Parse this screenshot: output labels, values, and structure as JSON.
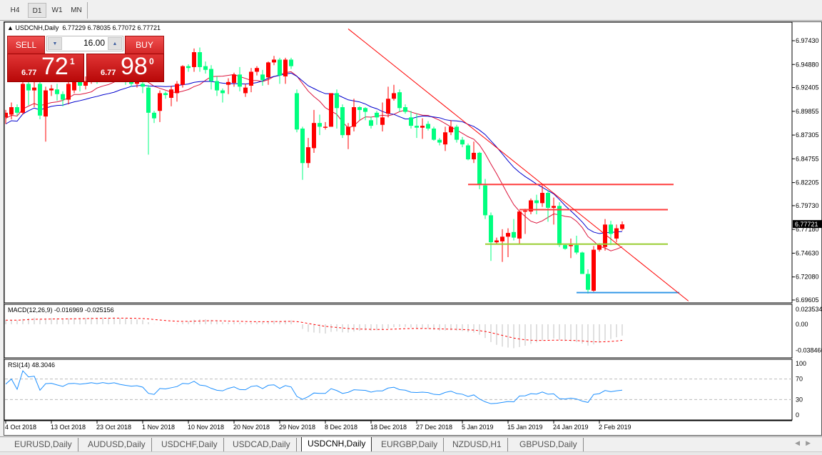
{
  "toolbar": {
    "timeframes": [
      {
        "label": "H4"
      },
      {
        "label": "D1",
        "active": true
      },
      {
        "label": "W1"
      },
      {
        "label": "MN"
      }
    ]
  },
  "chart": {
    "symbol_line": "USDCNH,Daily  6.77229 6.78035 6.77072 6.77721",
    "current_price": "6.77721",
    "colors": {
      "bull": "#ff0000",
      "bear": "#00ff7f",
      "ma_fast": "#dc143c",
      "ma_slow": "#0000cd",
      "trend": "#ff0000",
      "res1": "#ff3c3c",
      "res2": "#ff3c3c",
      "support": "#9acd32",
      "low": "#3399e6"
    }
  },
  "trade_panel": {
    "sell_label": "SELL",
    "buy_label": "BUY",
    "lot": "16.00",
    "sell_price": {
      "small": "6.77",
      "big": "72",
      "sup": "1"
    },
    "buy_price": {
      "small": "6.77",
      "big": "98",
      "sup": "0"
    }
  },
  "indicators": {
    "macd_label": "MACD(12,26,9) -0.016969 -0.025156",
    "macd_ticks": [
      "0.023534",
      "0.00",
      "-0.038466"
    ],
    "rsi_label": "RSI(14) 48.3046",
    "rsi_ticks": [
      "100",
      "70",
      "30",
      "0"
    ]
  },
  "chart_data": {
    "type": "candlestick",
    "symbol": "USDCNH",
    "timeframe": "Daily",
    "price_ticks": [
      "6.97430",
      "6.94880",
      "6.92405",
      "6.89855",
      "6.87305",
      "6.84755",
      "6.82205",
      "6.79730",
      "6.77180",
      "6.74630",
      "6.72080",
      "6.69605"
    ],
    "ylim": [
      6.6935,
      6.9938
    ],
    "date_labels": [
      "4 Oct 2018",
      "13 Oct 2018",
      "23 Oct 2018",
      "1 Nov 2018",
      "10 Nov 2018",
      "20 Nov 2018",
      "29 Nov 2018",
      "8 Dec 2018",
      "18 Dec 2018",
      "27 Dec 2018",
      "5 Jan 2019",
      "15 Jan 2019",
      "24 Jan 2019",
      "2 Feb 2019"
    ],
    "ohlc": [
      [
        6.892,
        6.9,
        6.885,
        6.897
      ],
      [
        6.895,
        6.908,
        6.89,
        6.903
      ],
      [
        6.903,
        6.906,
        6.894,
        6.897
      ],
      [
        6.897,
        6.935,
        6.895,
        6.928
      ],
      [
        6.928,
        6.932,
        6.905,
        6.921
      ],
      [
        6.921,
        6.93,
        6.903,
        6.924
      ],
      [
        6.928,
        6.933,
        6.89,
        6.894
      ],
      [
        6.893,
        6.925,
        6.866,
        6.921
      ],
      [
        6.921,
        6.927,
        6.915,
        6.923
      ],
      [
        6.922,
        6.928,
        6.91,
        6.917
      ],
      [
        6.917,
        6.92,
        6.904,
        6.911
      ],
      [
        6.911,
        6.931,
        6.906,
        6.928
      ],
      [
        6.921,
        6.934,
        6.918,
        6.93
      ],
      [
        6.93,
        6.935,
        6.92,
        6.926
      ],
      [
        6.926,
        6.936,
        6.922,
        6.931
      ],
      [
        6.931,
        6.941,
        6.928,
        6.937
      ],
      [
        6.937,
        6.94,
        6.928,
        6.933
      ],
      [
        6.933,
        6.944,
        6.93,
        6.94
      ],
      [
        6.94,
        6.945,
        6.931,
        6.936
      ],
      [
        6.936,
        6.947,
        6.933,
        6.941
      ],
      [
        6.941,
        6.944,
        6.93,
        6.935
      ],
      [
        6.935,
        6.938,
        6.927,
        6.931
      ],
      [
        6.931,
        6.935,
        6.925,
        6.928
      ],
      [
        6.928,
        6.933,
        6.924,
        6.93
      ],
      [
        6.928,
        6.93,
        6.918,
        6.925
      ],
      [
        6.924,
        6.927,
        6.852,
        6.897
      ],
      [
        6.897,
        6.899,
        6.886,
        6.891
      ],
      [
        6.899,
        6.921,
        6.887,
        6.918
      ],
      [
        6.918,
        6.92,
        6.912,
        6.916
      ],
      [
        6.913,
        6.926,
        6.904,
        6.922
      ],
      [
        6.918,
        6.931,
        6.909,
        6.928
      ],
      [
        6.927,
        6.948,
        6.924,
        6.947
      ],
      [
        6.947,
        6.949,
        6.941,
        6.945
      ],
      [
        6.946,
        6.966,
        6.941,
        6.962
      ],
      [
        6.962,
        6.967,
        6.941,
        6.946
      ],
      [
        6.947,
        6.952,
        6.939,
        6.943
      ],
      [
        6.944,
        6.948,
        6.922,
        6.931
      ],
      [
        6.931,
        6.936,
        6.915,
        6.921
      ],
      [
        6.921,
        6.923,
        6.908,
        6.918
      ],
      [
        6.927,
        6.934,
        6.917,
        6.93
      ],
      [
        6.929,
        6.94,
        6.925,
        6.938
      ],
      [
        6.938,
        6.946,
        6.92,
        6.925
      ],
      [
        6.918,
        6.928,
        6.914,
        6.924
      ],
      [
        6.926,
        6.945,
        6.919,
        6.941
      ],
      [
        6.941,
        6.947,
        6.937,
        6.945
      ],
      [
        6.938,
        6.943,
        6.926,
        6.932
      ],
      [
        6.935,
        6.952,
        6.927,
        6.951
      ],
      [
        6.951,
        6.958,
        6.948,
        6.954
      ],
      [
        6.954,
        6.956,
        6.928,
        6.937
      ],
      [
        6.936,
        6.956,
        6.928,
        6.954
      ],
      [
        6.954,
        6.956,
        6.944,
        6.947
      ],
      [
        6.918,
        6.922,
        6.876,
        6.879
      ],
      [
        6.88,
        6.882,
        6.825,
        6.843
      ],
      [
        6.843,
        6.87,
        6.838,
        6.86
      ],
      [
        6.859,
        6.9,
        6.854,
        6.886
      ],
      [
        6.886,
        6.895,
        6.873,
        6.882
      ],
      [
        6.881,
        6.887,
        6.879,
        6.882
      ],
      [
        6.882,
        6.918,
        6.882,
        6.918
      ],
      [
        6.918,
        6.922,
        6.88,
        6.902
      ],
      [
        6.903,
        6.906,
        6.87,
        6.873
      ],
      [
        6.873,
        6.886,
        6.858,
        6.882
      ],
      [
        6.882,
        6.912,
        6.877,
        6.903
      ],
      [
        6.903,
        6.904,
        6.889,
        6.9
      ],
      [
        6.902,
        6.903,
        6.889,
        6.898
      ],
      [
        6.889,
        6.893,
        6.88,
        6.883
      ],
      [
        6.897,
        6.899,
        6.884,
        6.892
      ],
      [
        6.884,
        6.908,
        6.877,
        6.892
      ],
      [
        6.896,
        6.925,
        6.892,
        6.912
      ],
      [
        6.912,
        6.927,
        6.91,
        6.918
      ],
      [
        6.919,
        6.922,
        6.898,
        6.902
      ],
      [
        6.903,
        6.906,
        6.896,
        6.898
      ],
      [
        6.892,
        6.899,
        6.88,
        6.883
      ],
      [
        6.883,
        6.896,
        6.87,
        6.881
      ],
      [
        6.881,
        6.891,
        6.869,
        6.883
      ],
      [
        6.885,
        6.888,
        6.878,
        6.88
      ],
      [
        6.88,
        6.882,
        6.867,
        6.868
      ],
      [
        6.868,
        6.87,
        6.862,
        6.865
      ],
      [
        6.863,
        6.882,
        6.856,
        6.876
      ],
      [
        6.876,
        6.889,
        6.873,
        6.882
      ],
      [
        6.882,
        6.884,
        6.865,
        6.868
      ],
      [
        6.868,
        6.871,
        6.86,
        6.863
      ],
      [
        6.862,
        6.864,
        6.846,
        6.847
      ],
      [
        6.847,
        6.866,
        6.843,
        6.854
      ],
      [
        6.854,
        6.855,
        6.815,
        6.82
      ],
      [
        6.819,
        6.826,
        6.783,
        6.787
      ],
      [
        6.787,
        6.79,
        6.738,
        6.758
      ],
      [
        6.758,
        6.763,
        6.756,
        6.76
      ],
      [
        6.759,
        6.772,
        6.737,
        6.764
      ],
      [
        6.764,
        6.773,
        6.742,
        6.768
      ],
      [
        6.769,
        6.783,
        6.76,
        6.763
      ],
      [
        6.762,
        6.792,
        6.756,
        6.791
      ],
      [
        6.791,
        6.794,
        6.767,
        6.792
      ],
      [
        6.791,
        6.805,
        6.788,
        6.803
      ],
      [
        6.803,
        6.809,
        6.788,
        6.8
      ],
      [
        6.8,
        6.82,
        6.796,
        6.811
      ],
      [
        6.811,
        6.814,
        6.78,
        6.795
      ],
      [
        6.795,
        6.806,
        6.777,
        6.797
      ],
      [
        6.797,
        6.801,
        6.753,
        6.755
      ],
      [
        6.755,
        6.756,
        6.75,
        6.751
      ],
      [
        6.754,
        6.762,
        6.741,
        6.755
      ],
      [
        6.755,
        6.765,
        6.745,
        6.747
      ],
      [
        6.747,
        6.748,
        6.724,
        6.724
      ],
      [
        6.724,
        6.729,
        6.703,
        6.707
      ],
      [
        6.706,
        6.754,
        6.705,
        6.75
      ],
      [
        6.75,
        6.757,
        6.748,
        6.755
      ],
      [
        6.753,
        6.783,
        6.749,
        6.777
      ],
      [
        6.777,
        6.781,
        6.755,
        6.767
      ],
      [
        6.762,
        6.777,
        6.758,
        6.773
      ],
      [
        6.77229,
        6.78035,
        6.77072,
        6.77721
      ]
    ],
    "ohlc_order": [
      "open",
      "high",
      "low",
      "close"
    ],
    "moving_averages": [
      {
        "period": 10,
        "color": "#dc143c"
      },
      {
        "period": 20,
        "color": "#0000cd"
      }
    ],
    "horizontal_lines": [
      {
        "price": 6.82,
        "from_bar": 81,
        "to_bar": 117,
        "color": "#ff3c3c"
      },
      {
        "price": 6.793,
        "from_bar": 90,
        "to_bar": 116,
        "color": "#ff3c3c"
      },
      {
        "price": 6.756,
        "from_bar": 84,
        "to_bar": 116,
        "color": "#9acd32"
      },
      {
        "price": 6.704,
        "from_bar": 100,
        "to_bar": 118,
        "color": "#3399e6"
      }
    ],
    "trend_line": {
      "from": {
        "bar": 60,
        "price": 6.987
      },
      "to": {
        "bar": 119.6,
        "price": 6.695
      },
      "color": "#ff0000"
    },
    "macd": {
      "fast": 12,
      "slow": 26,
      "signal": 9,
      "range": [
        -0.038466,
        0.023534
      ]
    },
    "rsi": {
      "period": 14,
      "levels": [
        70,
        30
      ],
      "range": [
        0,
        100
      ]
    }
  },
  "tabs": [
    {
      "label": "EURUSD,Daily"
    },
    {
      "label": "AUDUSD,Daily"
    },
    {
      "label": "USDCHF,Daily"
    },
    {
      "label": "USDCAD,Daily"
    },
    {
      "label": "USDCNH,Daily",
      "active": true
    },
    {
      "label": "EURGBP,Daily"
    },
    {
      "label": "NZDUSD,H1"
    },
    {
      "label": "GBPUSD,Daily"
    }
  ]
}
